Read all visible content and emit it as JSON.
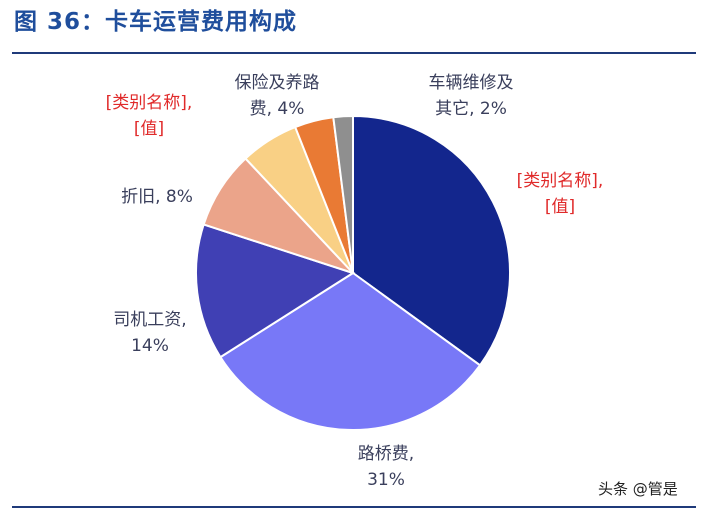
{
  "figure": {
    "title": "图 36：卡车运营费用构成",
    "watermark": "头条 @管是"
  },
  "chart_data": {
    "type": "pie",
    "title": "",
    "slices": [
      {
        "name": "",
        "value": 35,
        "color": "#13268d",
        "label_lines": [
          "[类别名称],",
          "[值]"
        ],
        "placeholder": true
      },
      {
        "name": "路桥费",
        "value": 31,
        "color": "#7878f7",
        "label_lines": [
          "路桥费,",
          "31%"
        ]
      },
      {
        "name": "司机工资",
        "value": 14,
        "color": "#4040b4",
        "label_lines": [
          "司机工资,",
          "14%"
        ]
      },
      {
        "name": "折旧",
        "value": 8,
        "color": "#eba48a",
        "label_lines": [
          "折旧, 8%"
        ]
      },
      {
        "name": "",
        "value": 6,
        "color": "#f9d085",
        "label_lines": [
          "[类别名称],",
          "[值]"
        ],
        "placeholder": true
      },
      {
        "name": "保险及养路费",
        "value": 4,
        "color": "#e97a34",
        "label_lines": [
          "保险及养路",
          "费, 4%"
        ]
      },
      {
        "name": "车辆维修及其它",
        "value": 2,
        "color": "#8f8f8f",
        "label_lines": [
          "车辆维修及",
          "其它, 2%"
        ]
      }
    ],
    "start_angle": "12 o'clock",
    "direction": "clockwise",
    "legend": "none"
  }
}
